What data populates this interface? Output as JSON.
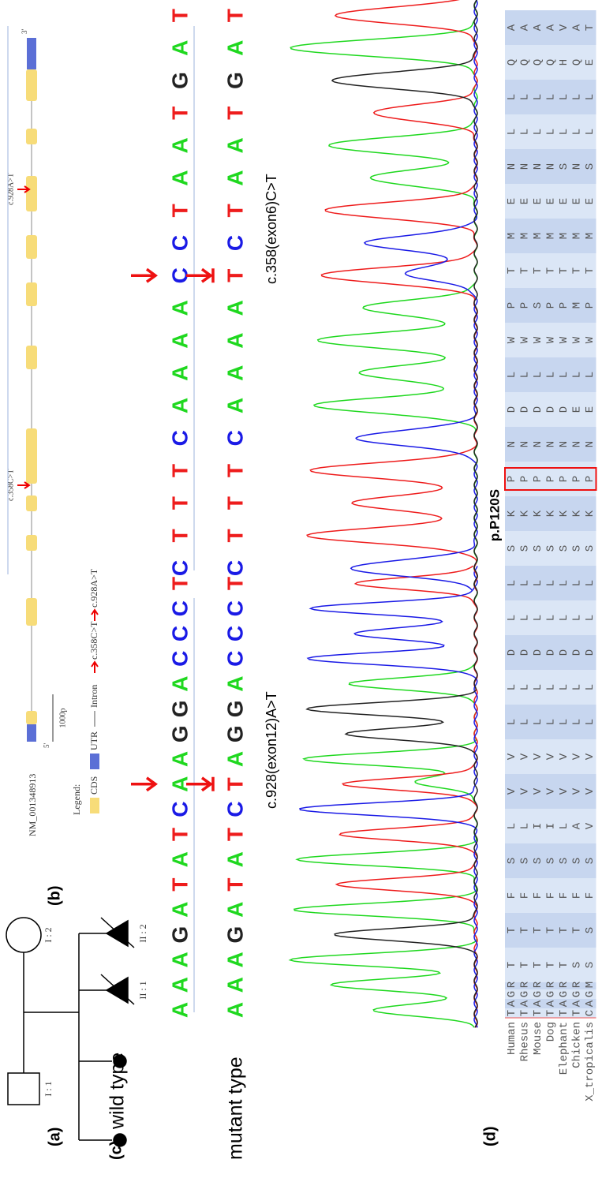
{
  "panel_labels": [
    "(a)",
    "(b)",
    "(c)",
    "(d)"
  ],
  "pedigree": {
    "labels": [
      "I : 1",
      "I : 2",
      "II : 1",
      "II : 2"
    ]
  },
  "gene": {
    "transcript": "NM_001348913",
    "five_prime": "5'",
    "three_prime": "3'",
    "scale": "1000p",
    "legend_title": "Legend:",
    "legend": [
      "CDS",
      "UTR",
      "Intron",
      "c.358C>T",
      "c.928A>T"
    ],
    "variants": [
      "c.358C>T",
      "c.928A>T"
    ]
  },
  "sequencing": {
    "wild_label": "wild type",
    "mutant_label": "mutant type",
    "wild": [
      "AAAGATATCAAGGACCCT",
      "CTTTCAAAACCTAATGAT"
    ],
    "mutant": [
      "AAAGATATCTAGGACCCT",
      "CTTTCAAAATCTAATGAT"
    ],
    "annotations": [
      "c.928(exon12)A>T",
      "c.358(exon6)C>T"
    ]
  },
  "alignment": {
    "mutation": "p.P120S",
    "species": [
      "Human",
      "Rhesus",
      "Mouse",
      "Dog",
      "Elephant",
      "Chicken",
      "X_tropicalis"
    ],
    "rows": [
      "TAGRTTFSLVVLLDLLSKPNDLWPTMENLLQA",
      "TAGRTTFSLVVLLDLLSKPNDLWPTMENLLQA",
      "TAGRTTFSIVVLLDLLSKPNDLWSTMENLLQA",
      "TAGRTTFSIVVLLDLLSKPNDLWPTMENLLQA",
      "TAGRTTFSLVVLLDLLSKPNDLWPTMESLLHV",
      "TAGRSTFSAVVLLDLLSKPNELWMTMENLLQA",
      "CAGMSSFSVVVLLDLLSKPNELWPTMESLLET"
    ]
  }
}
